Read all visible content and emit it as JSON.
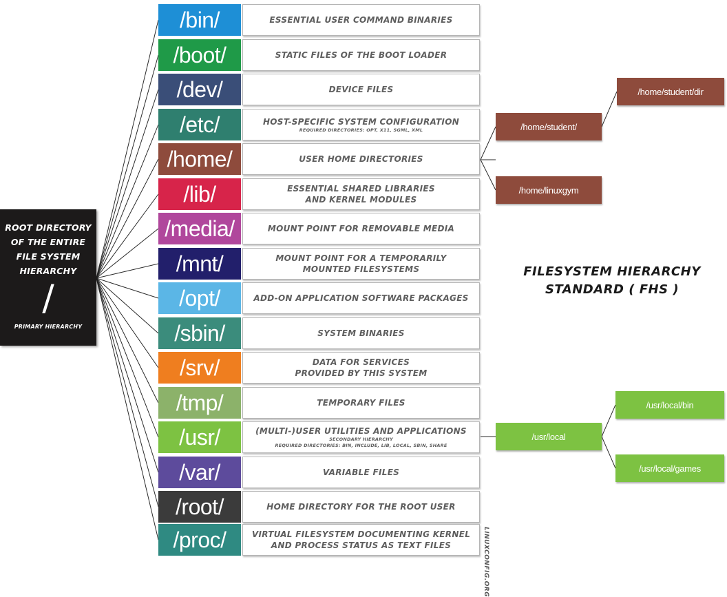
{
  "root": {
    "title": "ROOT DIRECTORY\nOF THE ENTIRE\nFILE SYSTEM\nHIERARCHY",
    "symbol": "/",
    "subtitle": "PRIMARY HIERARCHY"
  },
  "directories": [
    {
      "name": "/bin/",
      "color": "#1e8fd6",
      "description": "ESSENTIAL USER COMMAND BINARIES",
      "note": ""
    },
    {
      "name": "/boot/",
      "color": "#1f9a48",
      "description": "STATIC FILES OF THE BOOT LOADER",
      "note": ""
    },
    {
      "name": "/dev/",
      "color": "#3a4e78",
      "description": "DEVICE FILES",
      "note": ""
    },
    {
      "name": "/etc/",
      "color": "#2f7f6f",
      "description": "HOST-SPECIFIC SYSTEM CONFIGURATION",
      "note": "REQUIRED DIRECTORIES: OPT, X11, SGML, XML"
    },
    {
      "name": "/home/",
      "color": "#8e4b3c",
      "description": "USER HOME DIRECTORIES",
      "note": ""
    },
    {
      "name": "/lib/",
      "color": "#d7244a",
      "description": "ESSENTIAL SHARED LIBRARIES\nAND KERNEL MODULES",
      "note": ""
    },
    {
      "name": "/media/",
      "color": "#b0479c",
      "description": "MOUNT POINT FOR REMOVABLE MEDIA",
      "note": ""
    },
    {
      "name": "/mnt/",
      "color": "#221f6b",
      "description": "MOUNT POINT FOR A TEMPORARILY\nMOUNTED FILESYSTEMS",
      "note": ""
    },
    {
      "name": "/opt/",
      "color": "#5bb6e6",
      "description": "ADD-ON APPLICATION SOFTWARE PACKAGES",
      "note": ""
    },
    {
      "name": "/sbin/",
      "color": "#3b8c7c",
      "description": "SYSTEM BINARIES",
      "note": ""
    },
    {
      "name": "/srv/",
      "color": "#ef7e1f",
      "description": "DATA FOR SERVICES\nPROVIDED BY THIS SYSTEM",
      "note": ""
    },
    {
      "name": "/tmp/",
      "color": "#8cb26a",
      "description": "TEMPORARY FILES",
      "note": ""
    },
    {
      "name": "/usr/",
      "color": "#7dc242",
      "description": "(MULTI-)USER UTILITIES AND APPLICATIONS",
      "note": "SECONDARY HIERARCHY\nREQUIRED DIRECTORIES: BIN, INCLUDE, LIB, LOCAL, SBIN, SHARE"
    },
    {
      "name": "/var/",
      "color": "#5d4b9c",
      "description": "VARIABLE FILES",
      "note": ""
    },
    {
      "name": "/root/",
      "color": "#3b3b3b",
      "description": "HOME DIRECTORY FOR THE ROOT USER",
      "note": ""
    },
    {
      "name": "/proc/",
      "color": "#2f8a82",
      "description": "VIRTUAL FILESYSTEM DOCUMENTING KERNEL\nAND PROCESS STATUS AS TEXT FILES",
      "note": ""
    }
  ],
  "home_tree": {
    "student": "/home/student/",
    "student_dir": "/home/student/dir",
    "linuxgym": "/home/linuxgym"
  },
  "usr_tree": {
    "local": "/usr/local",
    "local_bin": "/usr/local/bin",
    "local_games": "/usr/local/games"
  },
  "title": "FILESYSTEM HIERARCHY\nSTANDARD ( FHS )",
  "credit": "LINUXCONFIG.ORG"
}
